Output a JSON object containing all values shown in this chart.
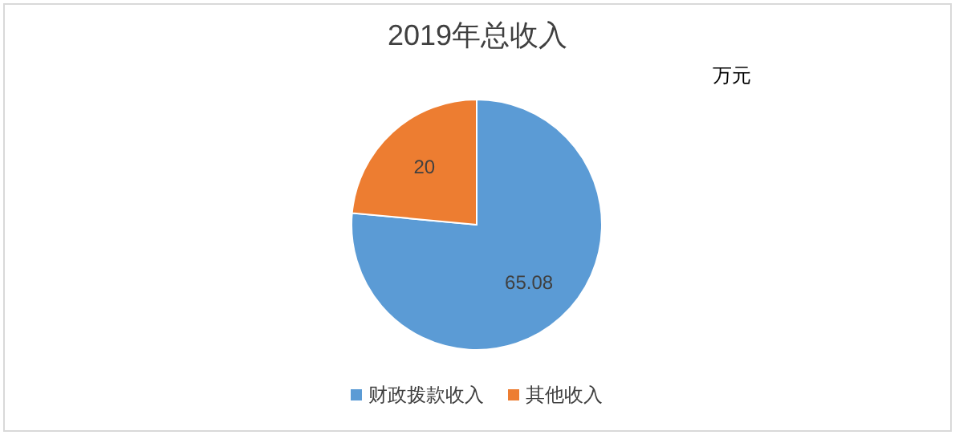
{
  "chart_data": {
    "type": "pie",
    "title": "2019年总收入",
    "annotations": [
      "万元"
    ],
    "categories": [
      "财政拨款收入",
      "其他收入"
    ],
    "values": [
      65.08,
      20
    ],
    "colors": [
      "#5b9bd5",
      "#ed7d31"
    ],
    "data_labels": true,
    "legend": "bottom"
  }
}
